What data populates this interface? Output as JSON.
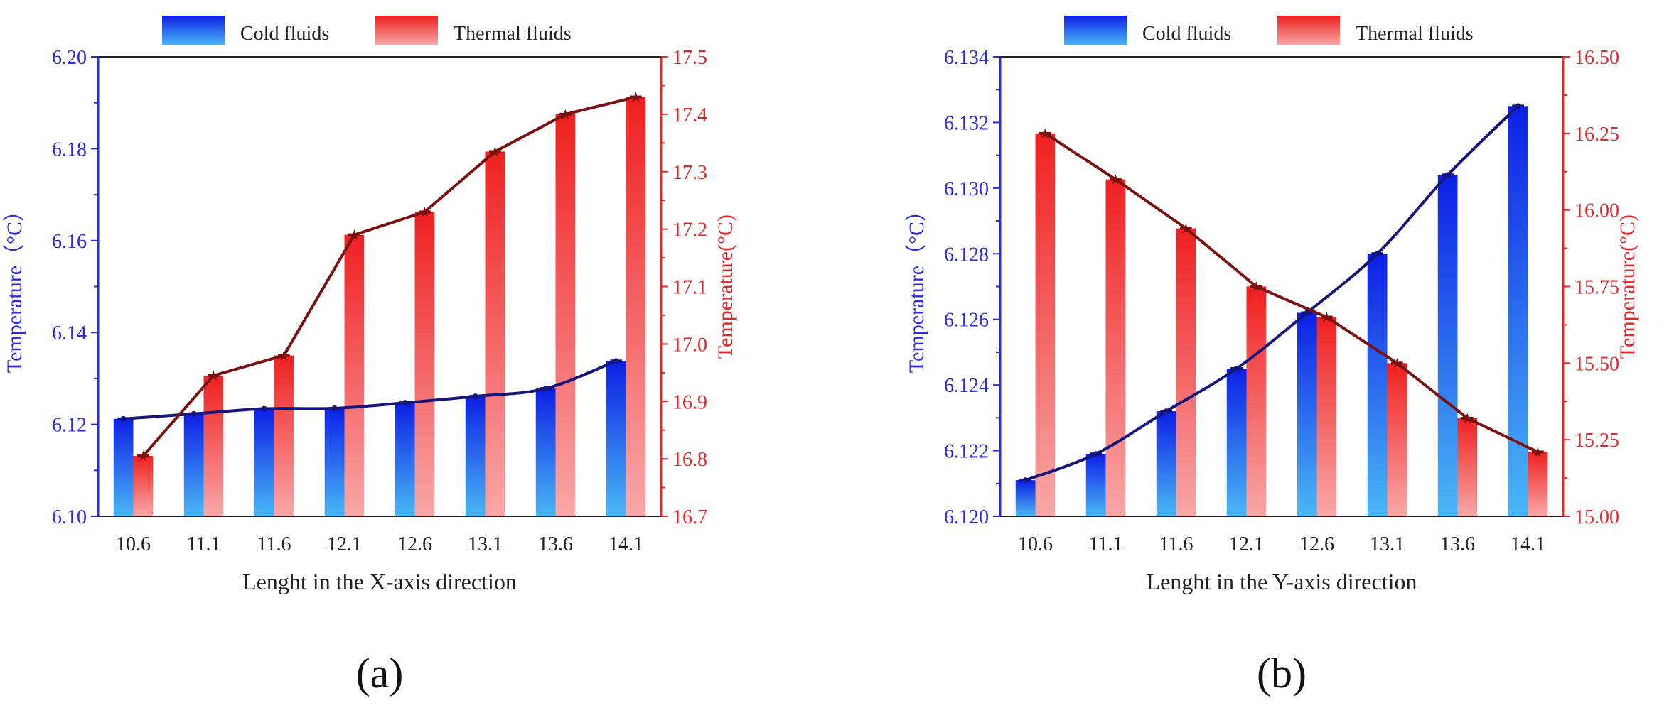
{
  "chart_data": [
    {
      "type": "bar",
      "panel_label": "(a)",
      "xlabel": "Lenght in the X-axis direction",
      "ylabel_left": "Temperature（°C）",
      "ylabel_right": "Temperature(°C)",
      "categories": [
        "10.6",
        "11.1",
        "11.6",
        "12.1",
        "12.6",
        "13.1",
        "13.6",
        "14.1"
      ],
      "left_axis": {
        "range": [
          6.1,
          6.2
        ],
        "ticks": [
          "6.10",
          "6.12",
          "6.14",
          "6.16",
          "6.18",
          "6.20"
        ],
        "color": "#2a2ae0"
      },
      "right_axis": {
        "range": [
          16.7,
          17.5
        ],
        "ticks": [
          "16.7",
          "16.8",
          "16.9",
          "17.0",
          "17.1",
          "17.2",
          "17.3",
          "17.4",
          "17.5"
        ],
        "color": "#e02a2a"
      },
      "series": [
        {
          "name": "Cold fluids",
          "axis": "left",
          "values": [
            6.1212,
            6.1223,
            6.1234,
            6.1235,
            6.1247,
            6.1261,
            6.1278,
            6.1338
          ]
        },
        {
          "name": "Thermal fluids",
          "axis": "right",
          "values": [
            16.805,
            16.945,
            16.98,
            17.19,
            17.23,
            17.335,
            17.4,
            17.43
          ]
        }
      ],
      "legend": "top-center",
      "grid": false
    },
    {
      "type": "bar",
      "panel_label": "(b)",
      "xlabel": "Lenght in the Y-axis direction",
      "ylabel_left": "Temperature（°C）",
      "ylabel_right": "Temperature(°C)",
      "categories": [
        "10.6",
        "11.1",
        "11.6",
        "12.1",
        "12.6",
        "13.1",
        "13.6",
        "14.1"
      ],
      "left_axis": {
        "range": [
          6.12,
          6.134
        ],
        "ticks": [
          "6.120",
          "6.122",
          "6.124",
          "6.126",
          "6.128",
          "6.130",
          "6.132",
          "6.134"
        ],
        "color": "#2a2ae0"
      },
      "right_axis": {
        "range": [
          15.0,
          16.5
        ],
        "ticks": [
          "15.00",
          "15.25",
          "15.50",
          "15.75",
          "16.00",
          "16.25",
          "16.50"
        ],
        "color": "#e02a2a"
      },
      "series": [
        {
          "name": "Cold fluids",
          "axis": "left",
          "values": [
            6.1211,
            6.1219,
            6.1232,
            6.1245,
            6.1262,
            6.128,
            6.1304,
            6.1325
          ]
        },
        {
          "name": "Thermal fluids",
          "axis": "right",
          "values": [
            16.25,
            16.1,
            15.94,
            15.75,
            15.65,
            15.5,
            15.32,
            15.21
          ]
        }
      ],
      "legend": "top-center",
      "grid": false
    }
  ]
}
